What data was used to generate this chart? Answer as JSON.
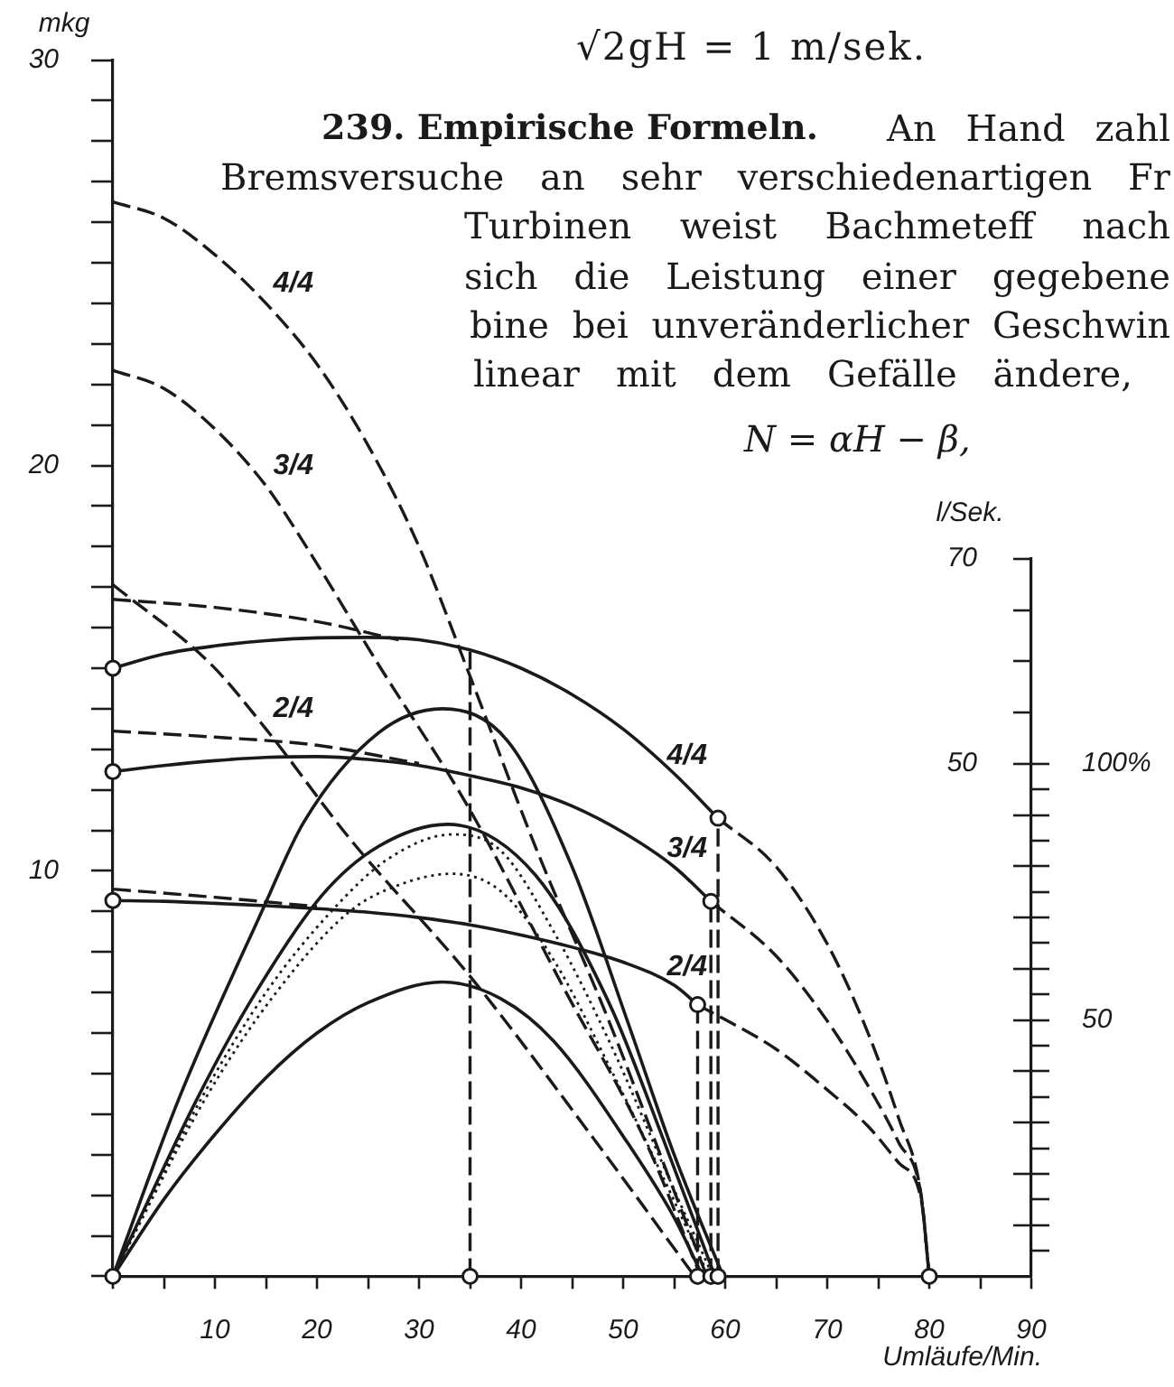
{
  "chart_data": {
    "type": "line",
    "xlabel": "Umläufe/Min.",
    "ylabel": "mkg",
    "y2label": "l/Sek.",
    "annotations": [
      "√2gH = 1 m/sek.",
      "239. Empirische Formeln.",
      "An Hand zahl",
      "Bremsversuche an sehr verschiedenartigen Fr",
      "Turbinen weist Bachmeteff nach",
      "sich die Leistung einer gegebene",
      "bine bei unveränderlicher Geschwin",
      "linear mit dem Gefälle ändere,",
      "N = αH − β,"
    ],
    "xlim": [
      0,
      90
    ],
    "xticks": [
      {
        "value": 0,
        "label": null
      },
      {
        "value": 5,
        "label": null
      },
      10,
      {
        "value": 15,
        "label": null
      },
      20,
      {
        "value": 25,
        "label": null
      },
      30,
      {
        "value": 35,
        "label": null
      },
      40,
      {
        "value": 45,
        "label": null
      },
      50,
      {
        "value": 55,
        "label": null
      },
      60,
      {
        "value": 65,
        "label": null
      },
      70,
      {
        "value": 75,
        "label": null
      },
      80,
      {
        "value": 85,
        "label": null
      },
      90
    ],
    "ylim": [
      0,
      30
    ],
    "yticks": [
      {
        "value": 0,
        "label": null
      },
      {
        "value": 1,
        "label": null
      },
      {
        "value": 2,
        "label": null
      },
      {
        "value": 3,
        "label": null
      },
      {
        "value": 4,
        "label": null
      },
      {
        "value": 5,
        "label": null
      },
      {
        "value": 6,
        "label": null
      },
      {
        "value": 7,
        "label": null
      },
      {
        "value": 8,
        "label": null
      },
      {
        "value": 9,
        "label": null
      },
      10,
      {
        "value": 11,
        "label": null
      },
      {
        "value": 12,
        "label": null
      },
      {
        "value": 13,
        "label": null
      },
      {
        "value": 14,
        "label": null
      },
      {
        "value": 15,
        "label": null
      },
      {
        "value": 16,
        "label": null
      },
      {
        "value": 17,
        "label": null
      },
      {
        "value": 18,
        "label": null
      },
      {
        "value": 19,
        "label": null
      },
      20,
      {
        "value": 21,
        "label": null
      },
      {
        "value": 22,
        "label": null
      },
      {
        "value": 23,
        "label": null
      },
      {
        "value": 24,
        "label": null
      },
      {
        "value": 25,
        "label": null
      },
      {
        "value": 26,
        "label": null
      },
      {
        "value": 27,
        "label": null
      },
      {
        "value": 28,
        "label": null
      },
      {
        "value": 29,
        "label": null
      },
      30
    ],
    "y2lim": [
      0,
      70
    ],
    "y2ticks": [
      {
        "value": 5,
        "label": null
      },
      {
        "value": 10,
        "label": null
      },
      {
        "value": 15,
        "label": null
      },
      {
        "value": 20,
        "label": null
      },
      {
        "value": 25,
        "label": null
      },
      {
        "value": 30,
        "label": null
      },
      {
        "value": 35,
        "label": null
      },
      {
        "value": 40,
        "label": null
      },
      {
        "value": 45,
        "label": null
      },
      50,
      {
        "value": 55,
        "label": null
      },
      {
        "value": 60,
        "label": null
      },
      {
        "value": 65,
        "label": null
      },
      70
    ],
    "y3lim": [
      0,
      140
    ],
    "y3ticks": [
      {
        "value": 5,
        "label": null
      },
      {
        "value": 10,
        "label": null
      },
      {
        "value": 15,
        "label": null
      },
      {
        "value": 20,
        "label": null
      },
      {
        "value": 25,
        "label": null
      },
      {
        "value": 30,
        "label": null
      },
      {
        "value": 35,
        "label": null
      },
      {
        "value": 40,
        "label": null
      },
      {
        "value": 45,
        "label": null
      },
      50,
      {
        "value": 55,
        "label": null
      },
      {
        "value": 60,
        "label": null
      },
      {
        "value": 65,
        "label": null
      },
      {
        "value": 70,
        "label": null
      },
      {
        "value": 75,
        "label": null
      },
      {
        "value": 80,
        "label": null
      },
      {
        "value": 85,
        "label": null
      },
      {
        "value": 90,
        "label": null
      },
      {
        "value": 95,
        "label": null
      },
      {
        "value": 100,
        "label": "100%"
      }
    ],
    "series": [
      {
        "name": "4/4",
        "color": "#1a1a1a",
        "line_style": "dashed",
        "x": [
          0,
          5,
          10,
          15,
          20,
          25,
          30,
          35,
          41.4,
          48.7,
          55,
          58.2
        ],
        "values": [
          26.5,
          26.1,
          25.2,
          24.0,
          22.5,
          20.5,
          18.0,
          14.8,
          10.6,
          6.24,
          2.1,
          0
        ]
      },
      {
        "name": "3/4",
        "color": "#1a1a1a",
        "line_style": "dashed",
        "x": [
          0,
          5,
          10,
          15,
          18.7,
          26,
          35,
          44.1,
          52.3,
          57.6
        ],
        "values": [
          22.35,
          21.9,
          20.9,
          19.5,
          18.1,
          15.1,
          11.5,
          7.15,
          3.27,
          0
        ]
      },
      {
        "name": "2/4",
        "color": "#1a1a1a",
        "line_style": "dashed",
        "x": [
          0,
          9.6,
          15,
          23.2,
          35,
          46.8,
          57.0
        ],
        "values": [
          17.06,
          15.1,
          13.5,
          10.8,
          7.4,
          3.5,
          0
        ]
      },
      {
        "name": "4/4",
        "color": "#1a1a1a",
        "x": [
          0,
          5,
          10,
          15,
          20,
          25,
          30,
          35,
          40,
          45,
          50,
          55,
          59.3
        ],
        "values": [
          15.0,
          15.35,
          15.55,
          15.68,
          15.75,
          15.76,
          15.7,
          15.45,
          15.0,
          14.35,
          13.5,
          12.4,
          11.3
        ]
      },
      {
        "name": "3/4",
        "color": "#1a1a1a",
        "x": [
          0,
          5,
          10,
          15,
          20,
          25,
          30,
          35,
          40,
          45,
          50,
          55,
          58.6
        ],
        "values": [
          12.45,
          12.6,
          12.72,
          12.8,
          12.82,
          12.75,
          12.6,
          12.35,
          12.05,
          11.6,
          10.95,
          10.1,
          9.25
        ]
      },
      {
        "name": "2/4",
        "color": "#1a1a1a",
        "x": [
          0,
          5,
          10,
          15,
          20,
          25,
          30,
          35,
          40,
          45,
          50,
          55,
          57.3
        ],
        "values": [
          9.27,
          9.25,
          9.2,
          9.14,
          9.07,
          8.98,
          8.85,
          8.67,
          8.42,
          8.12,
          7.75,
          7.18,
          6.7
        ]
      },
      {
        "color": "#1a1a1a",
        "line_style": "dashed",
        "x": [
          59.3,
          65,
          70,
          74,
          77,
          79.2,
          80
        ],
        "values": [
          11.3,
          10.1,
          8.2,
          6.0,
          3.9,
          2.0,
          0
        ]
      },
      {
        "color": "#1a1a1a",
        "line_style": "dashed",
        "x": [
          58.6,
          65,
          70,
          74,
          77,
          79.2,
          80
        ],
        "values": [
          9.25,
          7.9,
          6.3,
          4.7,
          3.3,
          2.0,
          0
        ]
      },
      {
        "color": "#1a1a1a",
        "line_style": "dashed",
        "x": [
          57.3,
          65,
          70,
          74,
          77,
          79.2,
          80
        ],
        "values": [
          6.7,
          5.6,
          4.6,
          3.7,
          2.8,
          1.9,
          0
        ]
      },
      {
        "color": "#1a1a1a",
        "line_style": "dashed",
        "x": [
          0,
          10,
          20,
          28
        ],
        "values": [
          16.7,
          16.5,
          16.15,
          15.7
        ]
      },
      {
        "color": "#1a1a1a",
        "line_style": "dashed",
        "x": [
          0,
          10,
          20,
          30
        ],
        "values": [
          13.45,
          13.3,
          13.1,
          12.65
        ]
      },
      {
        "color": "#1a1a1a",
        "line_style": "dashed",
        "x": [
          0,
          10,
          20
        ],
        "values": [
          9.55,
          9.35,
          9.12
        ]
      },
      {
        "color": "#1a1a1a",
        "x": [
          0,
          6.5,
          14.6,
          18.7,
          26,
          32.3,
          38.7,
          45,
          50.5,
          55,
          59.8
        ],
        "values": [
          0,
          4.4,
          9.0,
          11.2,
          13.4,
          14.0,
          13.2,
          10.1,
          6.24,
          3.0,
          0
        ]
      },
      {
        "color": "#1a1a1a",
        "x": [
          0,
          8.3,
          14,
          20.5,
          26,
          32.8,
          41.4,
          48.7,
          54.1,
          59.0
        ],
        "values": [
          0,
          4.4,
          7.0,
          9.4,
          10.6,
          11.15,
          9.9,
          6.7,
          3.27,
          0
        ]
      },
      {
        "color": "#1a1a1a",
        "x": [
          0,
          5,
          10,
          15,
          20,
          25,
          32.3,
          38,
          43.2,
          50.5,
          55,
          57.8
        ],
        "values": [
          0,
          1.9,
          3.5,
          4.9,
          6.0,
          6.75,
          7.26,
          6.85,
          5.8,
          3.27,
          1.45,
          0
        ]
      },
      {
        "color": "#1a1a1a",
        "line_style": "dotted",
        "x": [
          0,
          8.7,
          15,
          21.4,
          27,
          33.3,
          38,
          43.2,
          49,
          54,
          58.8
        ],
        "values": [
          0,
          4.4,
          7.0,
          9.0,
          10.3,
          10.9,
          10.5,
          8.5,
          5.6,
          2.7,
          0
        ]
      },
      {
        "color": "#1a1a1a",
        "line_style": "dotted",
        "x": [
          0,
          9.1,
          16,
          23.2,
          28,
          33.2,
          38,
          43.2,
          49,
          54,
          58.4
        ],
        "values": [
          0,
          4.4,
          7.0,
          9.0,
          9.65,
          9.93,
          9.5,
          7.8,
          5.0,
          2.4,
          0
        ]
      },
      {
        "color": "#1a1a1a",
        "line_style": "dashed",
        "x": [
          35,
          35
        ],
        "values": [
          0,
          15.45
        ]
      },
      {
        "color": "#1a1a1a",
        "line_style": "dashed",
        "x": [
          57.3,
          57.3
        ],
        "values": [
          0,
          6.7
        ]
      },
      {
        "color": "#1a1a1a",
        "line_style": "dashed",
        "x": [
          58.6,
          58.6
        ],
        "values": [
          0,
          9.25
        ]
      },
      {
        "color": "#1a1a1a",
        "line_style": "dashed",
        "x": [
          59.3,
          59.3
        ],
        "values": [
          0,
          11.3
        ]
      },
      {
        "type": "scatter",
        "marker": "circle",
        "color": "#1a1a1a",
        "x": [
          0,
          0,
          0,
          0,
          35,
          57.3,
          58.6,
          59.3,
          80,
          57.3,
          58.6,
          59.3
        ],
        "values": [
          15.0,
          12.45,
          9.27,
          0,
          0,
          0,
          0,
          0,
          0,
          6.7,
          9.25,
          11.3
        ]
      }
    ]
  }
}
